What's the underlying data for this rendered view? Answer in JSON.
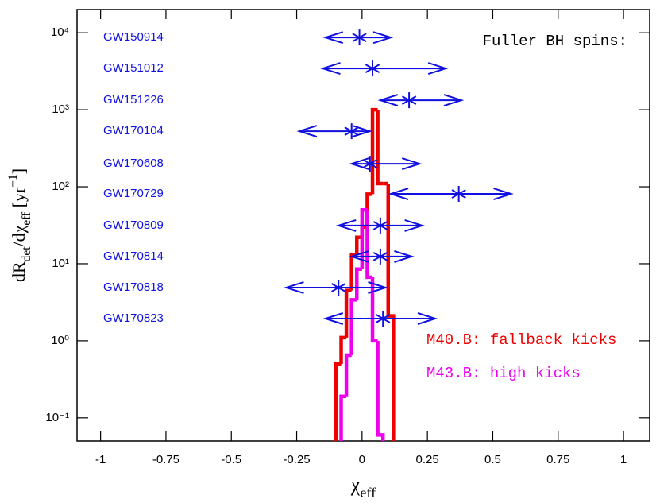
{
  "chart_data": {
    "type": "histogram",
    "annotation": "Fuller BH spins:",
    "xlabel": [
      {
        "text": "χ"
      },
      {
        "text": "eff",
        "sub": true
      }
    ],
    "ylabel": [
      {
        "text": "dR"
      },
      {
        "text": "det",
        "sub": true
      },
      {
        "text": "/dχ"
      },
      {
        "text": "eff",
        "sub": true
      },
      {
        "text": "  [yr"
      },
      {
        "text": "−1",
        "sup": true
      },
      {
        "text": "]"
      }
    ],
    "xlim": [
      -1.09,
      1.1
    ],
    "ylim": [
      0.05,
      20000
    ],
    "ylog": true,
    "xticks": [
      -1,
      -0.75,
      -0.5,
      -0.25,
      0,
      0.25,
      0.5,
      0.75,
      1
    ],
    "yticks": [
      {
        "value": 0.1,
        "label": "10⁻¹"
      },
      {
        "value": 1,
        "label": "10⁰"
      },
      {
        "value": 10,
        "label": "10¹"
      },
      {
        "value": 100,
        "label": "10²"
      },
      {
        "value": 1000,
        "label": "10³"
      },
      {
        "value": 10000,
        "label": "10⁴"
      }
    ],
    "legend": "lower right",
    "series": [
      {
        "name": "M40.B: fallback kicks",
        "color": "#ee0000",
        "bins": [
          -0.1,
          -0.08,
          -0.06,
          -0.04,
          -0.02,
          0,
          0.02,
          0.04,
          0.06,
          0.08,
          0.1,
          0.12
        ],
        "values": [
          0.5,
          1.1,
          4.5,
          13,
          22,
          30,
          80,
          1000,
          110,
          110,
          2.1
        ]
      },
      {
        "name": "M43.B: high kicks",
        "color": "#ee00ee",
        "bins": [
          -0.08,
          -0.06,
          -0.04,
          -0.02,
          0,
          0.02,
          0.04,
          0.06,
          0.08
        ],
        "values": [
          0.19,
          0.65,
          3.4,
          8.5,
          50,
          6.7,
          1.0,
          0.06
        ]
      }
    ],
    "events_color": "#1010e0",
    "events": [
      {
        "label": "GW150914",
        "chi": -0.01,
        "chi_low": -0.14,
        "chi_high": 0.11,
        "y": 8670
      },
      {
        "label": "GW151012",
        "chi": 0.04,
        "chi_low": -0.15,
        "chi_high": 0.32,
        "y": 3440
      },
      {
        "label": "GW151226",
        "chi": 0.18,
        "chi_low": 0.07,
        "chi_high": 0.38,
        "y": 1330
      },
      {
        "label": "GW170104",
        "chi": -0.04,
        "chi_low": -0.24,
        "chi_high": 0.03,
        "y": 527
      },
      {
        "label": "GW170608",
        "chi": 0.03,
        "chi_low": -0.04,
        "chi_high": 0.22,
        "y": 199
      },
      {
        "label": "GW170729",
        "chi": 0.37,
        "chi_low": 0.11,
        "chi_high": 0.57,
        "y": 80.7
      },
      {
        "label": "GW170809",
        "chi": 0.07,
        "chi_low": -0.09,
        "chi_high": 0.23,
        "y": 31.3
      },
      {
        "label": "GW170814",
        "chi": 0.07,
        "chi_low": -0.04,
        "chi_high": 0.19,
        "y": 12.4
      },
      {
        "label": "GW170818",
        "chi": -0.09,
        "chi_low": -0.29,
        "chi_high": 0.09,
        "y": 4.9
      },
      {
        "label": "GW170823",
        "chi": 0.08,
        "chi_low": -0.14,
        "chi_high": 0.28,
        "y": 1.94
      }
    ]
  }
}
